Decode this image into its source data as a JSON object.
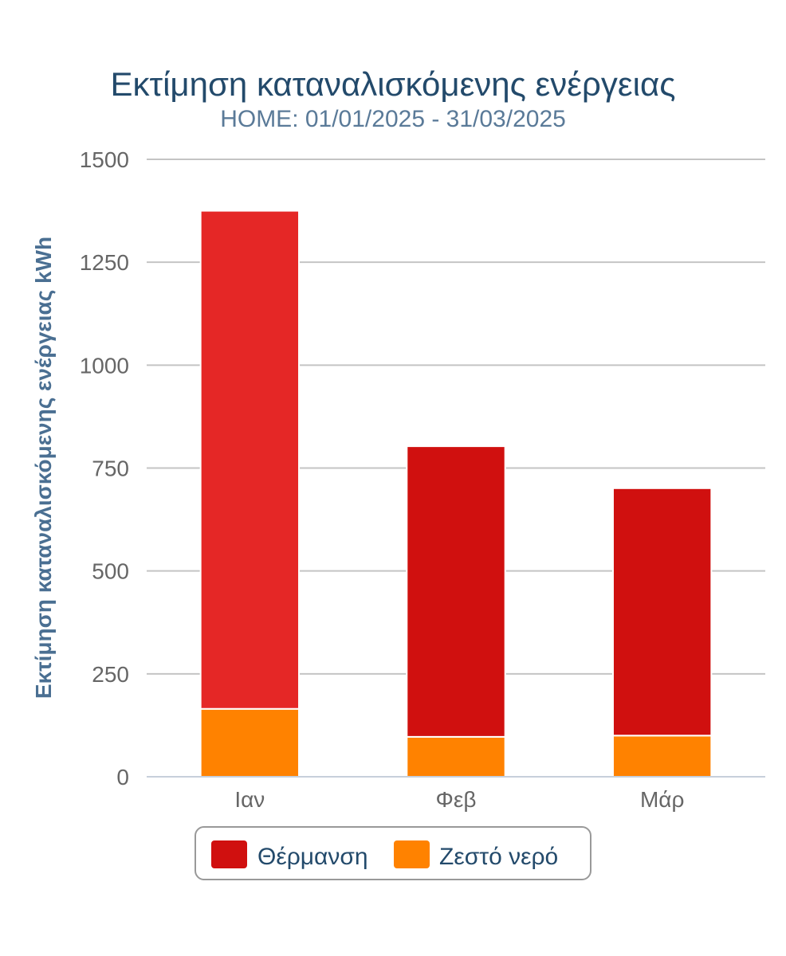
{
  "chart_data": {
    "type": "bar",
    "stacked": true,
    "title": "Εκτίμηση καταναλισκόμενης ενέργειας",
    "subtitle": "HOME: 01/01/2025 - 31/03/2025",
    "xlabel": "",
    "ylabel": "Εκτίμηση καταναλισκόμενης ενέργειας kWh",
    "categories": [
      "Ιαν",
      "Φεβ",
      "Μάρ"
    ],
    "ylim": [
      0,
      1500
    ],
    "yticks": [
      0,
      250,
      500,
      750,
      1000,
      1250,
      1500
    ],
    "grid": true,
    "legend_position": "bottom",
    "series": [
      {
        "name": "Ζεστό νερό",
        "values": [
          165,
          97,
          100
        ],
        "color": "#ff8200"
      },
      {
        "name": "Θέρμανση",
        "values": [
          1210,
          706,
          601
        ],
        "color": "#d0100f",
        "point_colors": [
          "#e52726",
          "#d0100f",
          "#d0100f"
        ]
      }
    ],
    "legend": [
      {
        "label": "Θέρμανση",
        "color": "#d0100f"
      },
      {
        "label": "Ζεστό νερό",
        "color": "#ff8200"
      }
    ]
  }
}
